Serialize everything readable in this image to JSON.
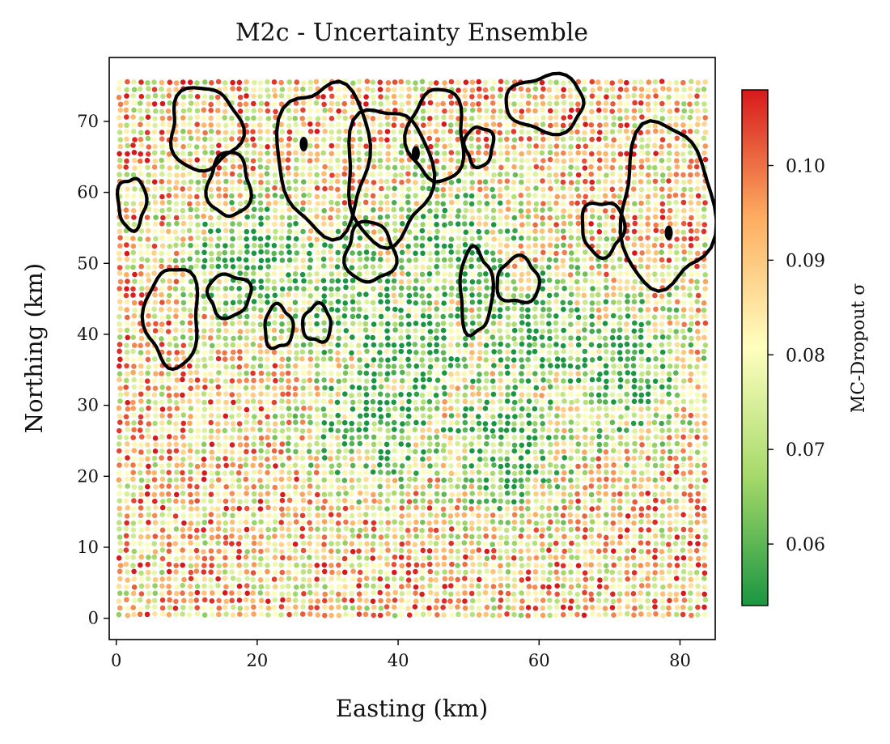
{
  "chart_data": {
    "type": "scatter",
    "title": "M2c - Uncertainty Ensemble",
    "xlabel": "Easting (km)",
    "ylabel": "Northing (km)",
    "xlim": [
      -1,
      85
    ],
    "ylim": [
      -3,
      79
    ],
    "x_ticks": [
      0,
      20,
      40,
      60,
      80
    ],
    "y_ticks": [
      0,
      10,
      20,
      30,
      40,
      50,
      60,
      70
    ],
    "grid": false,
    "colorbar": {
      "label": "MC-Dropout σ",
      "range": [
        0.0535,
        0.108
      ],
      "ticks": [
        0.06,
        0.07,
        0.08,
        0.09,
        0.1
      ],
      "tick_labels": [
        "0.06",
        "0.07",
        "0.08",
        "0.09",
        "0.10"
      ],
      "colormap": [
        "#1a9641",
        "#a6d96a",
        "#ffffbf",
        "#fdae61",
        "#d7191c"
      ]
    },
    "points": {
      "x_range": [
        0.5,
        83.5
      ],
      "y_range": [
        0.5,
        75.5
      ],
      "spacing_km": 1.0,
      "value_range": [
        0.0535,
        0.108
      ],
      "low_uncertainty_centers": [
        [
          33,
          45
        ],
        [
          42,
          38
        ],
        [
          47,
          52
        ],
        [
          55,
          25
        ],
        [
          72,
          35
        ],
        [
          20,
          50
        ],
        [
          37,
          28
        ],
        [
          60,
          40
        ]
      ]
    },
    "contours": [
      {
        "cx": 2.2,
        "cy": 58.5,
        "rx": 2.0,
        "ry": 3.6
      },
      {
        "cx": 12.5,
        "cy": 69,
        "rx": 5.0,
        "ry": 5.8
      },
      {
        "cx": 16,
        "cy": 61,
        "rx": 3.0,
        "ry": 4.5
      },
      {
        "cx": 8,
        "cy": 42.5,
        "rx": 3.8,
        "ry": 7.0
      },
      {
        "cx": 16,
        "cy": 45.5,
        "rx": 3.0,
        "ry": 3.0
      },
      {
        "cx": 23,
        "cy": 41,
        "rx": 2.0,
        "ry": 3.0
      },
      {
        "cx": 28.5,
        "cy": 41.5,
        "rx": 2.0,
        "ry": 2.6
      },
      {
        "cx": 29.5,
        "cy": 65,
        "rx": 6.5,
        "ry": 10.5
      },
      {
        "cx": 38.5,
        "cy": 62.5,
        "rx": 6.0,
        "ry": 9.5
      },
      {
        "cx": 36,
        "cy": 51.5,
        "rx": 3.5,
        "ry": 4.2
      },
      {
        "cx": 45.5,
        "cy": 68,
        "rx": 4.0,
        "ry": 6.5
      },
      {
        "cx": 51.5,
        "cy": 66.5,
        "rx": 2.0,
        "ry": 2.8
      },
      {
        "cx": 51,
        "cy": 46,
        "rx": 2.3,
        "ry": 6.0
      },
      {
        "cx": 57,
        "cy": 47.5,
        "rx": 3.0,
        "ry": 3.2
      },
      {
        "cx": 61,
        "cy": 72.5,
        "rx": 5.5,
        "ry": 4.0
      },
      {
        "cx": 69,
        "cy": 55,
        "rx": 3.0,
        "ry": 3.8
      },
      {
        "cx": 78,
        "cy": 58,
        "rx": 6.5,
        "ry": 11.5
      }
    ],
    "contour_dots": [
      [
        26.6,
        66.8
      ],
      [
        78.4,
        54.3
      ],
      [
        42.5,
        65.5
      ]
    ]
  }
}
